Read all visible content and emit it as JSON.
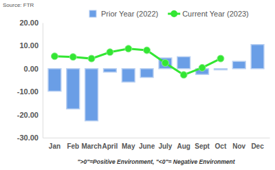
{
  "chart_data": {
    "type": "bar",
    "annotations": [
      "Source: FTR",
      "\">0\"=Positive Environment, \"<0\"= Negative Environment"
    ],
    "categories": [
      "Jan",
      "Feb",
      "March",
      "April",
      "May",
      "June",
      "July",
      "Aug",
      "Sept",
      "Oct",
      "Nov",
      "Dec"
    ],
    "series": [
      {
        "name": "Prior Year (2022)",
        "type": "bar",
        "color": "#6a9ee6",
        "values": [
          -9.8,
          -17.5,
          -22.7,
          -1.5,
          -5.8,
          -3.8,
          4.7,
          5.2,
          -2.5,
          -0.5,
          3.2,
          10.5
        ]
      },
      {
        "name": "Current Year (2023)",
        "type": "line",
        "color": "#33e633",
        "marker": "circle",
        "values": [
          5.4,
          5.1,
          4.4,
          7.2,
          8.7,
          8.0,
          2.5,
          -2.7,
          0.4,
          4.4,
          null,
          null
        ]
      }
    ],
    "ylim": [
      -30,
      20
    ],
    "yticks": [
      {
        "value": -30,
        "label": "-30.00"
      },
      {
        "value": -20,
        "label": "-20.00"
      },
      {
        "value": -10,
        "label": "-10.00"
      },
      {
        "value": 0,
        "label": "0.00"
      },
      {
        "value": 10,
        "label": "10.00"
      },
      {
        "value": 20,
        "label": "20.00"
      }
    ],
    "grid": false,
    "legend": "top"
  }
}
